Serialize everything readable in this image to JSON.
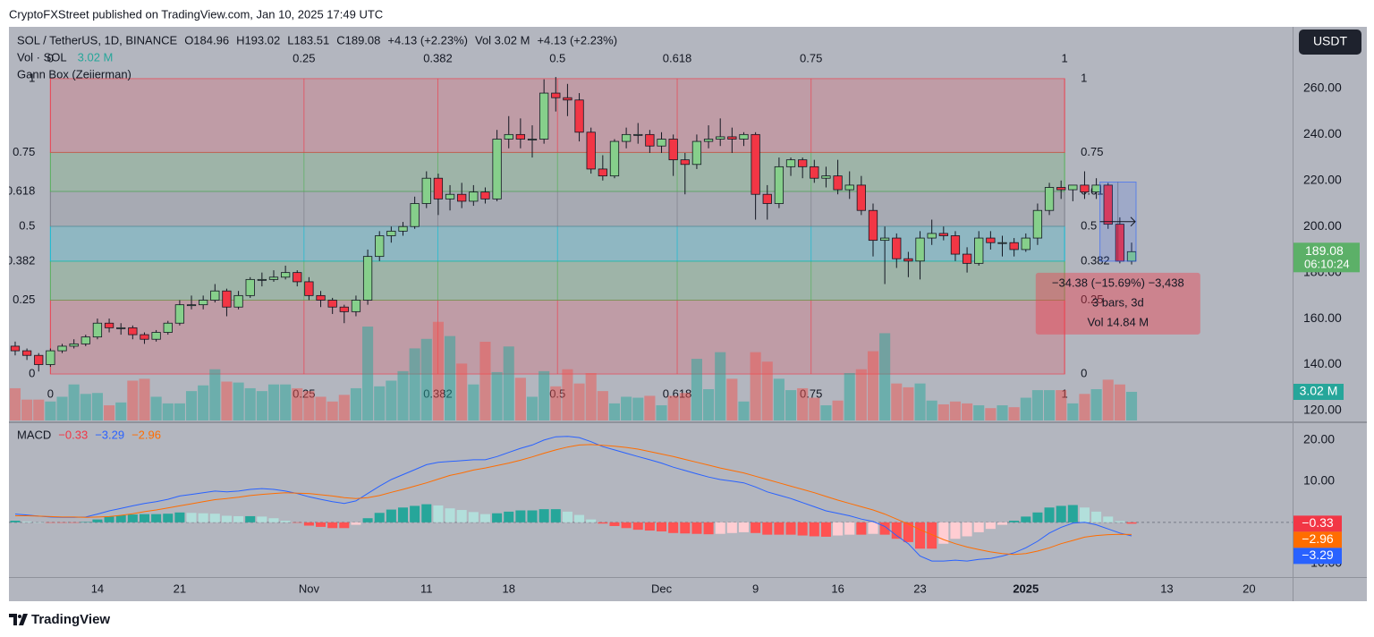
{
  "attribution": "CryptoFXStreet published on TradingView.com, Jan 10, 2025 17:49 UTC",
  "brand": "TradingView",
  "chart_data": {
    "type": "candlestick",
    "currency": "USDT",
    "legend_line1": [
      "SOL / TetherUS, 1D, BINANCE",
      "O184.96",
      "H193.02",
      "L183.51",
      "C189.08",
      "+4.13 (+2.23%)",
      "Vol 3.02 M",
      "+4.13 (+2.23%)"
    ],
    "legend_line2": "Vol · SOL",
    "countdown": "06:10:24",
    "xlim": [
      -0.53,
      108.7
    ],
    "xticks": [
      {
        "value": 7,
        "label": "14"
      },
      {
        "value": 14,
        "label": "21"
      },
      {
        "value": 25,
        "label": "Nov"
      },
      {
        "value": 35,
        "label": "11"
      },
      {
        "value": 42,
        "label": "18"
      },
      {
        "value": 55,
        "label": "Dec"
      },
      {
        "value": 63,
        "label": "9"
      },
      {
        "value": 70,
        "label": "16"
      },
      {
        "value": 77,
        "label": "23"
      },
      {
        "value": 86,
        "label": "2025"
      },
      {
        "value": 98,
        "label": "13"
      },
      {
        "value": 105,
        "label": "20"
      }
    ],
    "ylim": [
      115.7,
      286.8
    ],
    "yticks": [
      {
        "value": 260,
        "label": "260.00"
      },
      {
        "value": 240,
        "label": "240.00"
      },
      {
        "value": 220,
        "label": "220.00"
      },
      {
        "value": 200,
        "label": "200.00"
      },
      {
        "value": 180,
        "label": "180.00"
      },
      {
        "value": 160,
        "label": "160.00"
      },
      {
        "value": 140,
        "label": "140.00"
      },
      {
        "value": 120,
        "label": "120.00"
      }
    ],
    "up_color": "#86cf8b",
    "down_color": "#f23645",
    "badge_color": "#5cb068",
    "open": [
      148,
      146,
      144,
      140,
      146,
      148,
      149,
      152,
      158,
      156,
      156,
      153,
      151,
      154,
      158,
      166,
      166,
      168,
      172,
      165,
      170,
      177,
      177,
      178,
      180,
      176,
      170,
      168,
      165,
      163,
      168,
      187,
      196,
      198,
      200,
      210,
      221,
      212,
      214,
      211,
      215,
      212,
      238,
      240,
      238,
      238,
      258,
      256,
      255,
      241,
      225,
      222,
      237,
      240,
      240,
      235,
      238,
      229,
      227,
      237,
      238,
      239,
      238,
      240,
      214,
      210,
      226,
      229,
      226,
      221,
      222,
      216,
      218,
      207,
      194,
      195,
      186,
      185,
      195,
      197,
      196,
      188,
      184,
      195,
      193,
      193,
      190,
      195,
      207,
      217,
      216,
      218,
      215,
      218,
      201,
      184.96
    ],
    "high": [
      150,
      147,
      145,
      147,
      149,
      151,
      153,
      160,
      160,
      158,
      157,
      154,
      155,
      159,
      168,
      170,
      170,
      175,
      173,
      172,
      178,
      180,
      181,
      183,
      181,
      178,
      172,
      169,
      166,
      170,
      190,
      198,
      200,
      202,
      213,
      224,
      223,
      218,
      219,
      218,
      217,
      242,
      248,
      247,
      244,
      264,
      265,
      262,
      258,
      243,
      231,
      238,
      243,
      245,
      242,
      241,
      240,
      232,
      240,
      244,
      247,
      243,
      241,
      241,
      218,
      230,
      230,
      230,
      229,
      226,
      229,
      224,
      222,
      210,
      200,
      197,
      189,
      198,
      203,
      200,
      198,
      191,
      198,
      198,
      196,
      195,
      197,
      210,
      219,
      220,
      218,
      224,
      221,
      219,
      204,
      193.02
    ],
    "low": [
      144,
      142,
      137,
      139,
      145,
      147,
      148,
      151,
      154,
      153,
      151,
      149,
      150,
      153,
      157,
      164,
      164,
      167,
      161,
      164,
      169,
      174,
      176,
      177,
      174,
      168,
      165,
      162,
      158,
      161,
      166,
      185,
      193,
      196,
      199,
      208,
      205,
      207,
      208,
      209,
      210,
      211,
      234,
      234,
      230,
      236,
      250,
      248,
      237,
      223,
      220,
      221,
      234,
      236,
      232,
      232,
      222,
      214,
      225,
      234,
      235,
      232,
      235,
      203,
      203,
      208,
      222,
      221,
      219,
      217,
      214,
      212,
      205,
      187,
      175,
      182,
      178,
      177,
      192,
      194,
      185,
      180,
      183,
      190,
      187,
      187,
      189,
      192,
      205,
      212,
      211,
      212,
      212,
      199,
      184,
      183.51
    ],
    "close": [
      146,
      144,
      140,
      146,
      148,
      149,
      152,
      158,
      156,
      156,
      153,
      151,
      154,
      158,
      166,
      166,
      168,
      172,
      165,
      170,
      177,
      177,
      178,
      180,
      176,
      170,
      168,
      165,
      163,
      168,
      187,
      196,
      198,
      200,
      210,
      221,
      212,
      214,
      211,
      215,
      212,
      238,
      240,
      238,
      238,
      258,
      256,
      255,
      241,
      225,
      222,
      237,
      240,
      240,
      235,
      238,
      229,
      227,
      237,
      238,
      239,
      238,
      240,
      214,
      210,
      226,
      229,
      226,
      221,
      222,
      216,
      218,
      207,
      194,
      195,
      186,
      185,
      195,
      197,
      196,
      188,
      184,
      195,
      193,
      193,
      190,
      195,
      207,
      217,
      216,
      218,
      215,
      218,
      201,
      184.95,
      189.08
    ],
    "volume": {
      "ylim": [
        0,
        41.5
      ],
      "up_color": "#26a69a",
      "down_color": "#ef5350",
      "last_label": "3.02 M",
      "values": [
        3.4,
        2.2,
        2.2,
        2.0,
        2.5,
        3.8,
        2.8,
        2.9,
        1.6,
        1.9,
        4.2,
        4.4,
        2.5,
        1.8,
        1.8,
        3.1,
        3.7,
        5.4,
        4.1,
        4.0,
        3.4,
        3.1,
        3.8,
        3.8,
        3.4,
        3.1,
        2.5,
        2.0,
        2.7,
        3.4,
        9.9,
        3.6,
        4.2,
        5.2,
        7.6,
        8.6,
        10.4,
        8.9,
        6.0,
        3.8,
        8.3,
        5.1,
        7.8,
        4.5,
        2.5,
        5.2,
        3.6,
        5.4,
        3.9,
        5.0,
        3.1,
        1.8,
        2.5,
        2.4,
        2.6,
        1.6,
        2.6,
        2.9,
        6.5,
        3.3,
        7.2,
        4.4,
        2.0,
        7.2,
        6.2,
        4.4,
        3.2,
        3.4,
        2.4,
        1.6,
        2.1,
        5.0,
        5.4,
        7.3,
        9.2,
        3.9,
        3.5,
        3.9,
        2.1,
        1.7,
        2.0,
        1.8,
        1.6,
        1.3,
        1.6,
        1.4,
        2.4,
        3.2,
        3.2,
        3.2,
        1.8,
        2.8,
        3.3,
        4.3,
        3.8,
        3.02
      ]
    },
    "gann_box": {
      "name": "Gann Box (Zeiierman)",
      "x_range": [
        3,
        89.3
      ],
      "price_range": [
        135.9,
        264.3
      ],
      "levels": [
        0,
        0.25,
        0.382,
        0.5,
        0.618,
        0.75,
        1
      ],
      "band_colors": [
        "#f23645",
        "#4caf50",
        "#00bcd4",
        "#787b86",
        "#4caf50",
        "#f23645"
      ]
    },
    "measure": {
      "from_index": 92,
      "to_index": 95,
      "price_range": [
        184.95,
        219.33
      ],
      "color": "#2962ff",
      "label_color": "#f23645",
      "lines": [
        "−34.38 (−15.69%) −3,438",
        "3 bars, 3d",
        "Vol 14.84 M"
      ]
    },
    "macd_pane": {
      "name": "MACD",
      "ylim": [
        -13.3,
        24.1
      ],
      "yticks": [
        {
          "value": 20,
          "label": "20.00"
        },
        {
          "value": 10,
          "label": "10.00"
        },
        {
          "value": -10,
          "label": "−10.00"
        }
      ],
      "histogram": {
        "label": "−0.33",
        "colors": [
          "#26a69a",
          "#b2dfdb",
          "#ffcdd2",
          "#ff5252"
        ],
        "values": [
          0.4,
          0.2,
          0,
          -0.1,
          -0.1,
          -0.1,
          0.1,
          0.7,
          1.4,
          1.7,
          1.9,
          2.0,
          2.0,
          2.1,
          2.4,
          2.3,
          2.2,
          2.1,
          1.6,
          1.5,
          1.5,
          1.4,
          1.0,
          0.4,
          -0.1,
          -0.8,
          -1.1,
          -1.4,
          -1.4,
          -0.6,
          1.0,
          2.3,
          3.1,
          3.6,
          4.0,
          4.4,
          4.1,
          3.4,
          3.0,
          2.5,
          2.0,
          2.2,
          2.6,
          2.9,
          2.9,
          3.2,
          3.2,
          2.6,
          1.8,
          0.7,
          -0.3,
          -0.9,
          -1.4,
          -1.8,
          -2.0,
          -2.2,
          -2.6,
          -2.7,
          -2.8,
          -2.9,
          -2.8,
          -2.6,
          -2.4,
          -2.6,
          -3.0,
          -3.0,
          -3.0,
          -3.2,
          -3.4,
          -3.5,
          -3.2,
          -3.0,
          -3.0,
          -2.8,
          -3.0,
          -4.0,
          -4.8,
          -6.4,
          -6.4,
          -5.2,
          -4.0,
          -3.4,
          -2.4,
          -1.6,
          -0.6,
          0.4,
          1.4,
          2.4,
          3.6,
          4.0,
          4.2,
          3.6,
          2.6,
          1.4,
          0.3,
          -0.33
        ]
      },
      "macd": {
        "label": "−3.29",
        "color": "#2962ff",
        "values": [
          2.0,
          1.8,
          1.5,
          1.3,
          1.2,
          1.2,
          1.3,
          2.0,
          2.8,
          3.4,
          4.0,
          4.6,
          5.0,
          5.6,
          6.4,
          6.8,
          7.2,
          7.6,
          7.4,
          7.6,
          8.0,
          8.2,
          8.0,
          7.6,
          7.0,
          6.2,
          5.6,
          5.0,
          4.6,
          5.2,
          7.0,
          8.8,
          10.4,
          11.6,
          12.8,
          14.0,
          14.6,
          14.8,
          15.0,
          15.2,
          15.2,
          16.0,
          17.0,
          18.0,
          18.8,
          20.0,
          20.8,
          20.9,
          20.6,
          19.6,
          18.4,
          17.6,
          16.8,
          16.0,
          15.2,
          14.4,
          13.4,
          12.6,
          11.8,
          11.0,
          10.4,
          10.0,
          9.6,
          8.6,
          7.4,
          6.6,
          5.8,
          4.8,
          3.8,
          2.8,
          2.2,
          1.6,
          0.8,
          0.2,
          -1.0,
          -3.2,
          -5.2,
          -8.2,
          -9.4,
          -9.4,
          -9.2,
          -9.4,
          -9.0,
          -8.8,
          -8.2,
          -7.4,
          -6.2,
          -4.6,
          -2.6,
          -1.2,
          -0.2,
          0.0,
          -0.6,
          -1.6,
          -2.6,
          -3.29
        ]
      },
      "signal": {
        "label": "−2.96",
        "color": "#ff6d00",
        "values": [
          1.6,
          1.6,
          1.5,
          1.4,
          1.3,
          1.3,
          1.2,
          1.3,
          1.4,
          1.7,
          2.1,
          2.6,
          3.0,
          3.5,
          4.0,
          4.5,
          5.0,
          5.5,
          5.8,
          6.1,
          6.5,
          6.8,
          7.0,
          7.2,
          7.1,
          7.0,
          6.7,
          6.4,
          6.0,
          5.8,
          6.0,
          6.5,
          7.3,
          8.0,
          8.8,
          9.6,
          10.5,
          11.4,
          12.0,
          12.7,
          13.2,
          13.8,
          14.4,
          15.1,
          15.9,
          16.8,
          17.6,
          18.3,
          18.8,
          18.9,
          18.7,
          18.5,
          18.2,
          17.8,
          17.2,
          16.6,
          16.0,
          15.3,
          14.6,
          13.9,
          13.2,
          12.6,
          12.0,
          11.2,
          10.4,
          9.6,
          8.8,
          8.0,
          7.2,
          6.3,
          5.4,
          4.6,
          3.8,
          3.0,
          2.0,
          0.8,
          -0.4,
          -1.8,
          -3.0,
          -4.2,
          -5.2,
          -6.0,
          -6.6,
          -7.2,
          -7.6,
          -7.8,
          -7.6,
          -7.0,
          -6.2,
          -5.2,
          -4.4,
          -3.6,
          -3.2,
          -3.0,
          -2.9,
          -2.96
        ]
      }
    }
  }
}
